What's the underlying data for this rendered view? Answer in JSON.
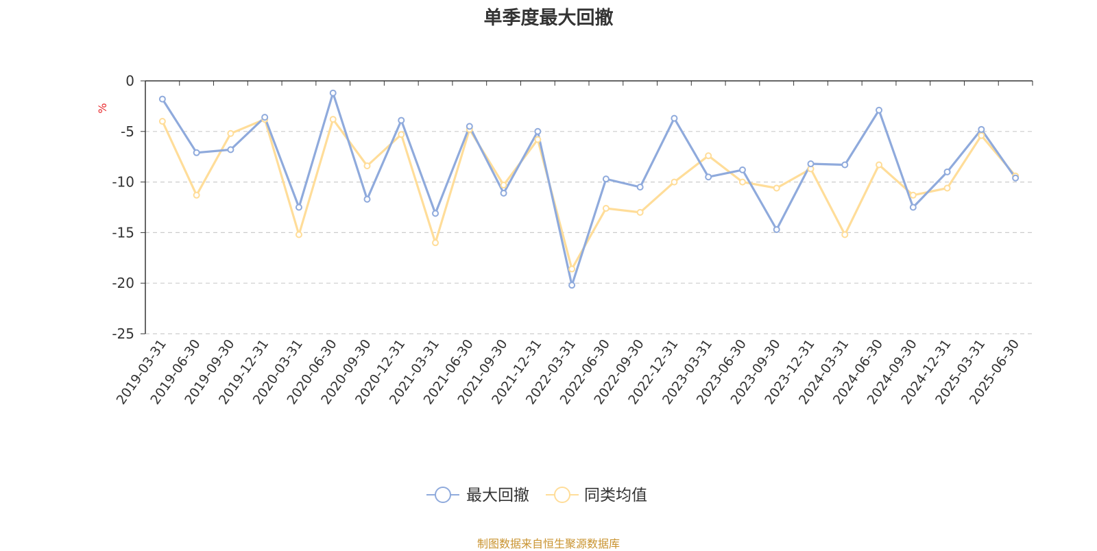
{
  "chart_data": {
    "type": "line",
    "title": "单季度最大回撤",
    "ylabel": "%",
    "ylim": [
      -25,
      0
    ],
    "yticks": [
      0,
      -5,
      -10,
      -15,
      -20,
      -25
    ],
    "grid": "horizontal-dashed",
    "legend_position": "bottom-center",
    "categories": [
      "2019-03-31",
      "2019-06-30",
      "2019-09-30",
      "2019-12-31",
      "2020-03-31",
      "2020-06-30",
      "2020-09-30",
      "2020-12-31",
      "2021-03-31",
      "2021-06-30",
      "2021-09-30",
      "2021-12-31",
      "2022-03-31",
      "2022-06-30",
      "2022-09-30",
      "2022-12-31",
      "2023-03-31",
      "2023-06-30",
      "2023-09-30",
      "2023-12-31",
      "2024-03-31",
      "2024-06-30",
      "2024-09-30",
      "2024-12-31",
      "2025-03-31",
      "2025-06-30"
    ],
    "series": [
      {
        "name": "最大回撤",
        "color": "#8faadc",
        "values": [
          -1.8,
          -7.1,
          -6.8,
          -3.6,
          -12.5,
          -1.2,
          -11.7,
          -3.9,
          -13.1,
          -4.5,
          -11.1,
          -5.0,
          -20.2,
          -9.7,
          -10.5,
          -3.7,
          -9.5,
          -8.8,
          -14.7,
          -8.2,
          -8.3,
          -2.9,
          -12.5,
          -9.0,
          -4.8,
          -9.6
        ]
      },
      {
        "name": "同类均值",
        "color": "#ffdd99",
        "values": [
          -4.0,
          -11.3,
          -5.2,
          -3.8,
          -15.2,
          -3.8,
          -8.4,
          -5.3,
          -16.0,
          -4.8,
          -10.3,
          -5.8,
          -18.6,
          -12.6,
          -13.0,
          -10.0,
          -7.4,
          -10.0,
          -10.6,
          -8.7,
          -15.2,
          -8.3,
          -11.3,
          -10.6,
          -5.4,
          -9.4
        ]
      }
    ]
  },
  "source_text": "制图数据来自恒生聚源数据库"
}
